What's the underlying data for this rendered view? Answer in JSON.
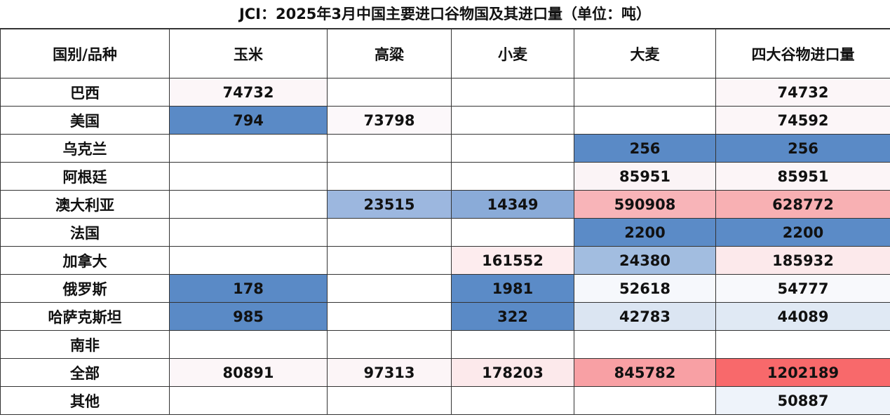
{
  "title": "JCI：2025年3月中国主要进口谷物国及其进口量（单位：吨）",
  "headers": [
    "国别/品种",
    "玉米",
    "高粱",
    "小麦",
    "大麦",
    "四大谷物进口量"
  ],
  "rows": [
    {
      "country": "巴西",
      "cells": [
        {
          "v": "74732",
          "c": "#fcf6f8"
        },
        {
          "v": "",
          "c": ""
        },
        {
          "v": "",
          "c": ""
        },
        {
          "v": "",
          "c": ""
        },
        {
          "v": "74732",
          "c": "#fcf6f8"
        }
      ]
    },
    {
      "country": "美国",
      "cells": [
        {
          "v": "794",
          "c": "#5a8ac6"
        },
        {
          "v": "73798",
          "c": "#fcf8fa"
        },
        {
          "v": "",
          "c": ""
        },
        {
          "v": "",
          "c": ""
        },
        {
          "v": "74592",
          "c": "#fcf6f8"
        }
      ]
    },
    {
      "country": "乌克兰",
      "cells": [
        {
          "v": "",
          "c": ""
        },
        {
          "v": "",
          "c": ""
        },
        {
          "v": "",
          "c": ""
        },
        {
          "v": "256",
          "c": "#5a8ac6"
        },
        {
          "v": "256",
          "c": "#5a8ac6"
        }
      ]
    },
    {
      "country": "阿根廷",
      "cells": [
        {
          "v": "",
          "c": ""
        },
        {
          "v": "",
          "c": ""
        },
        {
          "v": "",
          "c": ""
        },
        {
          "v": "85951",
          "c": "#fbf4f6"
        },
        {
          "v": "85951",
          "c": "#fcf5f7"
        }
      ]
    },
    {
      "country": "澳大利亚",
      "cells": [
        {
          "v": "",
          "c": ""
        },
        {
          "v": "23515",
          "c": "#9cb7df"
        },
        {
          "v": "14349",
          "c": "#8aabd8"
        },
        {
          "v": "590908",
          "c": "#f8b4b8"
        },
        {
          "v": "628772",
          "c": "#f8b0b3"
        }
      ]
    },
    {
      "country": "法国",
      "cells": [
        {
          "v": "",
          "c": ""
        },
        {
          "v": "",
          "c": ""
        },
        {
          "v": "",
          "c": ""
        },
        {
          "v": "2200",
          "c": "#5b8bc7"
        },
        {
          "v": "2200",
          "c": "#5b8bc7"
        }
      ]
    },
    {
      "country": "加拿大",
      "cells": [
        {
          "v": "",
          "c": ""
        },
        {
          "v": "",
          "c": ""
        },
        {
          "v": "161552",
          "c": "#fdecee"
        },
        {
          "v": "24380",
          "c": "#a2bde0"
        },
        {
          "v": "185932",
          "c": "#fce9eb"
        }
      ]
    },
    {
      "country": "俄罗斯",
      "cells": [
        {
          "v": "178",
          "c": "#5a8ac6"
        },
        {
          "v": "",
          "c": ""
        },
        {
          "v": "1981",
          "c": "#5b8bc7"
        },
        {
          "v": "52618",
          "c": "#f6f8fc"
        },
        {
          "v": "54777",
          "c": "#f8f9fc"
        }
      ]
    },
    {
      "country": "哈萨克斯坦",
      "cells": [
        {
          "v": "985",
          "c": "#5a8ac6"
        },
        {
          "v": "",
          "c": ""
        },
        {
          "v": "322",
          "c": "#5a8ac6"
        },
        {
          "v": "42783",
          "c": "#dbe5f2"
        },
        {
          "v": "44089",
          "c": "#e0e9f4"
        }
      ]
    },
    {
      "country": "南非",
      "cells": [
        {
          "v": "",
          "c": ""
        },
        {
          "v": "",
          "c": ""
        },
        {
          "v": "",
          "c": ""
        },
        {
          "v": "",
          "c": ""
        },
        {
          "v": "",
          "c": ""
        }
      ]
    },
    {
      "country": "全部",
      "cells": [
        {
          "v": "80891",
          "c": "#fcf6f8"
        },
        {
          "v": "97313",
          "c": "#fcf5f7"
        },
        {
          "v": "178203",
          "c": "#fce9eb"
        },
        {
          "v": "845782",
          "c": "#f8a0a4"
        },
        {
          "v": "1202189",
          "c": "#f8696b"
        }
      ]
    },
    {
      "country": "其他",
      "cells": [
        {
          "v": "",
          "c": ""
        },
        {
          "v": "",
          "c": ""
        },
        {
          "v": "",
          "c": ""
        },
        {
          "v": "",
          "c": ""
        },
        {
          "v": "50887",
          "c": "#eef3fa"
        }
      ]
    }
  ]
}
